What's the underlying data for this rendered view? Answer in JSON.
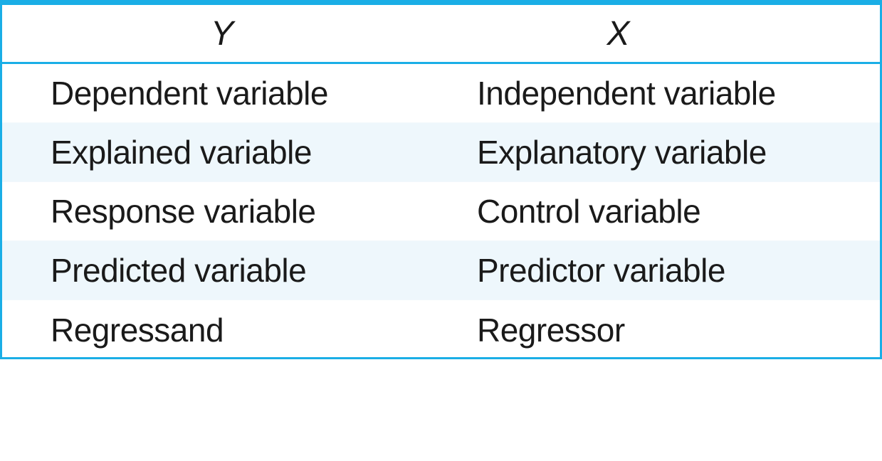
{
  "table": {
    "headers": [
      "Y",
      "X"
    ],
    "rows": [
      [
        "Dependent variable",
        "Independent variable"
      ],
      [
        "Explained variable",
        "Explanatory variable"
      ],
      [
        "Response variable",
        "Control variable"
      ],
      [
        "Predicted variable",
        "Predictor variable"
      ],
      [
        "Regressand",
        "Regressor"
      ]
    ]
  },
  "colors": {
    "border": "#1aaee6",
    "stripe": "#eef7fc",
    "text": "#1a1a1a"
  }
}
